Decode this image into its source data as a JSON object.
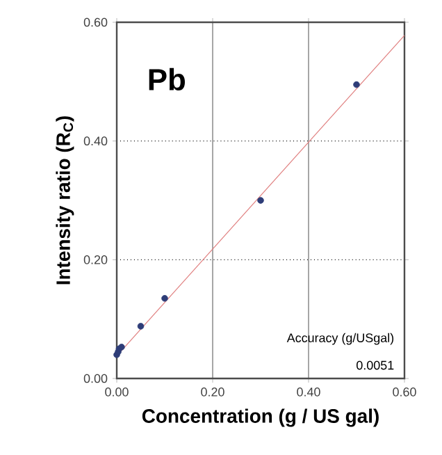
{
  "chart_data": {
    "type": "scatter",
    "xlabel": "Concentration (g / US gal)",
    "ylabel": "Intensity ratio (R$_{C}$)",
    "xlim": [
      0,
      0.6
    ],
    "ylim": [
      0,
      0.6
    ],
    "xticks": [
      {
        "value": 0,
        "label": "0.00"
      },
      {
        "value": 0.2,
        "label": "0.20"
      },
      {
        "value": 0.4,
        "label": "0.40"
      },
      {
        "value": 0.6,
        "label": "0.60"
      }
    ],
    "yticks": [
      {
        "value": 0,
        "label": "0.00"
      },
      {
        "value": 0.2,
        "label": "0.20"
      },
      {
        "value": 0.4,
        "label": "0.40"
      },
      {
        "value": 0.6,
        "label": "0.60"
      }
    ],
    "grid": true,
    "annotations": [
      "Pb",
      "Accuracy  (g/USgal)",
      "0.0051"
    ],
    "series": [
      {
        "marker": "circle",
        "color": "#2e3d78",
        "x": [
          0,
          0.003,
          0.005,
          0.01,
          0.05,
          0.1,
          0.3,
          0.5
        ],
        "values": [
          0.04,
          0.045,
          0.05,
          0.053,
          0.088,
          0.135,
          0.3,
          0.495
        ]
      },
      {
        "type": "line",
        "marker": "none",
        "color": "#e07f7f",
        "x": [
          0,
          0.6
        ],
        "values": [
          0.038,
          0.578
        ]
      }
    ]
  }
}
